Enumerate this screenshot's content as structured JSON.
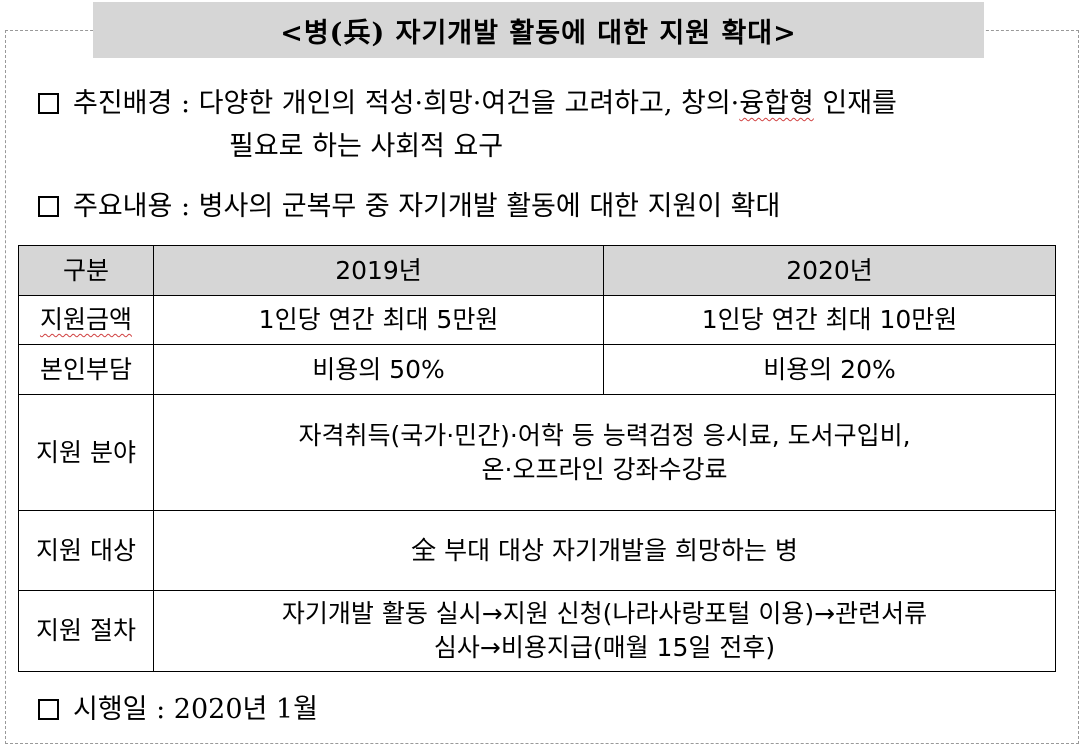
{
  "title": "<병(兵) 자기개발 활동에 대한 지원 확대>",
  "background": {
    "label": "추진배경 :",
    "line1": "다양한 개인의 적성·희망·여건을 고려하고, 창의·",
    "line1_squiggle": "융합형",
    "line1_end": " 인재를",
    "line2": "필요로 하는 사회적 요구"
  },
  "content": {
    "label": "주요내용 :",
    "text": "병사의 군복무 중 자기개발 활동에 대한 지원이 확대"
  },
  "table": {
    "headers": [
      "구분",
      "2019년",
      "2020년"
    ],
    "rows": [
      {
        "label": "지원금액",
        "y2019": "1인당 연간 최대 5만원",
        "y2020": "1인당 연간 최대 10만원"
      },
      {
        "label": "본인부담",
        "y2019": "비용의 50%",
        "y2020": "비용의 20%"
      }
    ],
    "field": {
      "label": "지원 분야",
      "line1": "자격취득(국가·민간)·어학 등 능력검정 응시료, 도서구입비,",
      "line2": "온·오프라인 강좌수강료"
    },
    "target": {
      "label": "지원 대상",
      "text": "全 부대 대상 자기개발을 희망하는 병"
    },
    "procedure": {
      "label": "지원 절차",
      "line1": "자기개발 활동 실시→지원 신청(나라사랑포털 이용)→관련서류",
      "line2": "심사→비용지급(매월 15일 전후)"
    }
  },
  "effective": {
    "label": "시행일 :",
    "text": "2020년 1월"
  },
  "colors": {
    "header_bg": "#d6d6d6",
    "squiggle": "#d04040"
  }
}
